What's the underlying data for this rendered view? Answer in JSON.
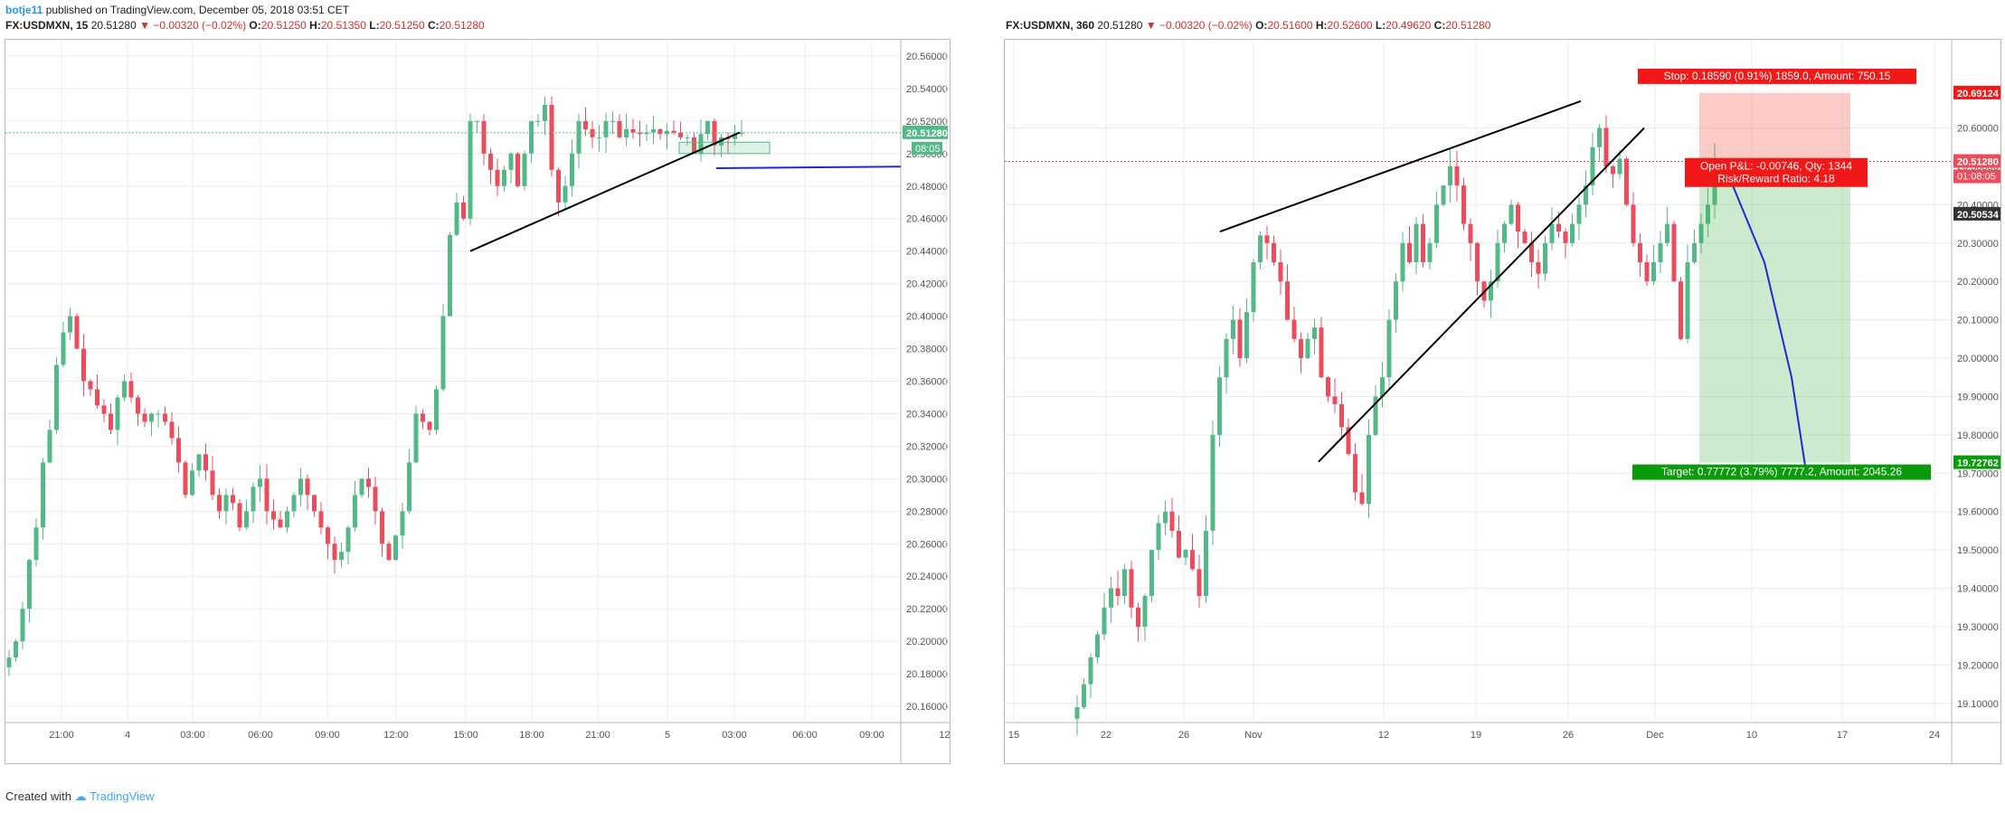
{
  "publish_line": {
    "author": "botje11",
    "text": "published on TradingView.com, December 05, 2018 03:51 CET"
  },
  "left_header": {
    "symbol": "FX:USDMXN, 15",
    "last": "20.51280",
    "change": "▼ −0.00320 (−0.02%)",
    "open_label": "O:",
    "open": "20.51250",
    "high_label": "H:",
    "high": "20.51350",
    "low_label": "L:",
    "low": "20.51250",
    "close_label": "C:",
    "close": "20.51280"
  },
  "right_header": {
    "symbol": "FX:USDMXN, 360",
    "last": "20.51280",
    "change": "▼ −0.00320 (−0.02%)",
    "open_label": "O:",
    "open": "20.51600",
    "high_label": "H:",
    "high": "20.52600",
    "low_label": "L:",
    "low": "20.49620",
    "close_label": "C:",
    "close": "20.51280"
  },
  "footer": {
    "created_with": "Created with",
    "brand": "TradingView"
  },
  "colors": {
    "up": "#53b987",
    "down": "#eb4d5c",
    "grid": "#ececec",
    "axis": "#555555"
  },
  "chart_data": [
    {
      "type": "candlestick",
      "title": "FX:USDMXN, 15",
      "ylim": [
        20.15,
        20.57
      ],
      "y_ticks": [
        20.16,
        20.18,
        20.2,
        20.22,
        20.24,
        20.26,
        20.28,
        20.3,
        20.32,
        20.34,
        20.36,
        20.38,
        20.4,
        20.42,
        20.44,
        20.46,
        20.48,
        20.5,
        20.52,
        20.54,
        20.56
      ],
      "x_ticks": [
        "21:00",
        "4",
        "03:00",
        "06:00",
        "09:00",
        "12:00",
        "15:00",
        "18:00",
        "21:00",
        "5",
        "03:00",
        "06:00",
        "09:00",
        "12:"
      ],
      "price_label": "20.51280",
      "countdown_label": "08:05",
      "hidden_label": "20.50",
      "closes": [
        20.19,
        20.2,
        20.22,
        20.25,
        20.27,
        20.31,
        20.33,
        20.37,
        20.39,
        20.4,
        20.38,
        20.36,
        20.355,
        20.345,
        20.34,
        20.33,
        20.35,
        20.36,
        20.35,
        20.34,
        20.335,
        20.34,
        20.34,
        20.335,
        20.325,
        20.31,
        20.29,
        20.305,
        20.315,
        20.305,
        20.29,
        20.28,
        20.29,
        20.285,
        20.27,
        20.28,
        20.295,
        20.3,
        20.28,
        20.275,
        20.27,
        20.28,
        20.29,
        20.3,
        20.29,
        20.28,
        20.27,
        20.26,
        20.25,
        20.255,
        20.27,
        20.29,
        20.3,
        20.295,
        20.28,
        20.26,
        20.25,
        20.265,
        20.28,
        20.31,
        20.34,
        20.335,
        20.33,
        20.355,
        20.4,
        20.45,
        20.47,
        20.46,
        20.52,
        20.52,
        20.5,
        20.49,
        20.48,
        20.49,
        20.5,
        20.48,
        20.5,
        20.52,
        20.52,
        20.53,
        20.49,
        20.47,
        20.48,
        20.5,
        20.52,
        20.515,
        20.51,
        20.51,
        20.52,
        20.52,
        20.51,
        20.515,
        20.513,
        20.512,
        20.513,
        20.515,
        20.512,
        20.514,
        20.513,
        20.51,
        20.51,
        20.5,
        20.512,
        20.52,
        20.505,
        20.51,
        20.509,
        20.512,
        20.5128
      ],
      "annotations": {
        "trendline": [
          [
            15.0,
            20.44
          ],
          [
            29.5,
            20.513
          ]
        ],
        "horizontal": [
          [
            26.6,
            20.491
          ],
          [
            40.5,
            20.492
          ]
        ],
        "zone": [
          [
            26.2,
            20.5
          ],
          [
            30.1,
            20.507
          ]
        ],
        "current_price_dotted": 20.5128
      }
    },
    {
      "type": "candlestick",
      "title": "FX:USDMXN, 360",
      "ylim": [
        19.05,
        20.83
      ],
      "y_ticks": [
        19.1,
        19.2,
        19.3,
        19.4,
        19.5,
        19.6,
        19.7,
        19.8,
        19.9,
        20.0,
        20.1,
        20.2,
        20.3,
        20.4,
        20.5,
        20.6
      ],
      "x_ticks": [
        "15",
        "22",
        "26",
        "Nov",
        "12",
        "19",
        "26",
        "Dec",
        "10",
        "17",
        "24"
      ],
      "price_label": "20.51280",
      "countdown_label": "01:08:05",
      "extra_labels": [
        "20.69124",
        "20.50534",
        "19.72762"
      ],
      "closes": [
        19.09,
        19.15,
        19.22,
        19.28,
        19.35,
        19.4,
        19.38,
        19.45,
        19.35,
        19.3,
        19.38,
        19.5,
        19.57,
        19.6,
        19.55,
        19.48,
        19.5,
        19.45,
        19.38,
        19.55,
        19.8,
        19.95,
        20.05,
        20.1,
        20.0,
        20.12,
        20.25,
        20.32,
        20.3,
        20.25,
        20.2,
        20.1,
        20.05,
        20.0,
        20.05,
        20.08,
        19.95,
        19.9,
        19.88,
        19.82,
        19.75,
        19.65,
        19.62,
        19.8,
        19.9,
        19.95,
        20.1,
        20.2,
        20.3,
        20.25,
        20.35,
        20.25,
        20.3,
        20.4,
        20.45,
        20.5,
        20.45,
        20.35,
        20.3,
        20.2,
        20.15,
        20.2,
        20.3,
        20.35,
        20.4,
        20.33,
        20.3,
        20.25,
        20.22,
        20.3,
        20.35,
        20.33,
        20.3,
        20.35,
        20.4,
        20.45,
        20.55,
        20.6,
        20.5,
        20.48,
        20.52,
        20.4,
        20.3,
        20.25,
        20.2,
        20.25,
        20.3,
        20.35,
        20.2,
        20.05,
        20.25,
        20.3,
        20.35,
        20.4,
        20.5128
      ],
      "position": {
        "stop_text": "Stop: 0.18590 (0.91%) 1859.0, Amount: 750.15",
        "target_text": "Target: 0.77772 (3.79%) 7777.2, Amount: 2045.26",
        "pnl_text": "Open P&L: -0.00746, Qty: 1344",
        "rr_text": "Risk/Reward Ratio: 4.18",
        "entry": 20.5053,
        "stop": 20.6912,
        "target": 19.7276
      },
      "annotations": {
        "upper_line": [
          [
            25.0,
            20.33
          ],
          [
            68.0,
            20.67
          ]
        ],
        "lower_line": [
          [
            37.0,
            19.73
          ],
          [
            72.0,
            20.6
          ]
        ],
        "projection": [
          [
            81,
            20.51
          ],
          [
            84,
            20.48
          ],
          [
            88,
            20.25
          ],
          [
            90,
            19.95
          ],
          [
            91,
            19.72
          ]
        ]
      }
    }
  ]
}
